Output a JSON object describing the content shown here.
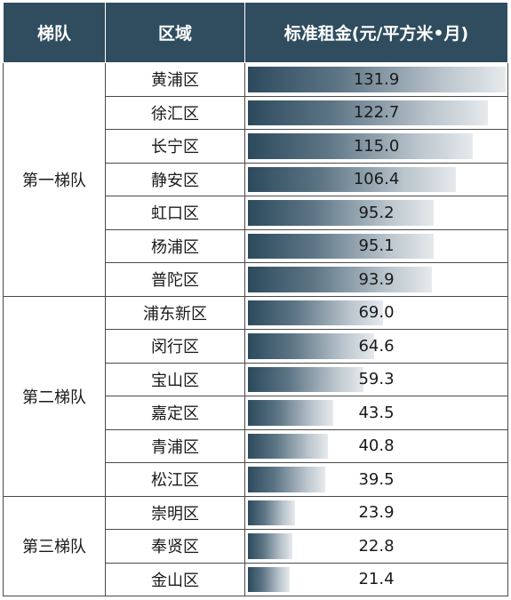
{
  "colors": {
    "header_bg": "#2f4d5e",
    "bar_start": "#2c4a5d",
    "bar_end": "#e6eaed"
  },
  "chart_data": {
    "type": "table",
    "columns": [
      "梯队",
      "区域",
      "标准租金(元/平方米•月)"
    ],
    "value_max": 131.9,
    "tiers": [
      {
        "name": "第一梯队",
        "rows": [
          {
            "district": "黄浦区",
            "rent": "131.9"
          },
          {
            "district": "徐汇区",
            "rent": "122.7"
          },
          {
            "district": "长宁区",
            "rent": "115.0"
          },
          {
            "district": "静安区",
            "rent": "106.4"
          },
          {
            "district": "虹口区",
            "rent": "95.2"
          },
          {
            "district": "杨浦区",
            "rent": "95.1"
          },
          {
            "district": "普陀区",
            "rent": "93.9"
          }
        ]
      },
      {
        "name": "第二梯队",
        "rows": [
          {
            "district": "浦东新区",
            "rent": "69.0"
          },
          {
            "district": "闵行区",
            "rent": "64.6"
          },
          {
            "district": "宝山区",
            "rent": "59.3"
          },
          {
            "district": "嘉定区",
            "rent": "43.5"
          },
          {
            "district": "青浦区",
            "rent": "40.8"
          },
          {
            "district": "松江区",
            "rent": "39.5"
          }
        ]
      },
      {
        "name": "第三梯队",
        "rows": [
          {
            "district": "崇明区",
            "rent": "23.9"
          },
          {
            "district": "奉贤区",
            "rent": "22.8"
          },
          {
            "district": "金山区",
            "rent": "21.4"
          }
        ]
      }
    ]
  }
}
